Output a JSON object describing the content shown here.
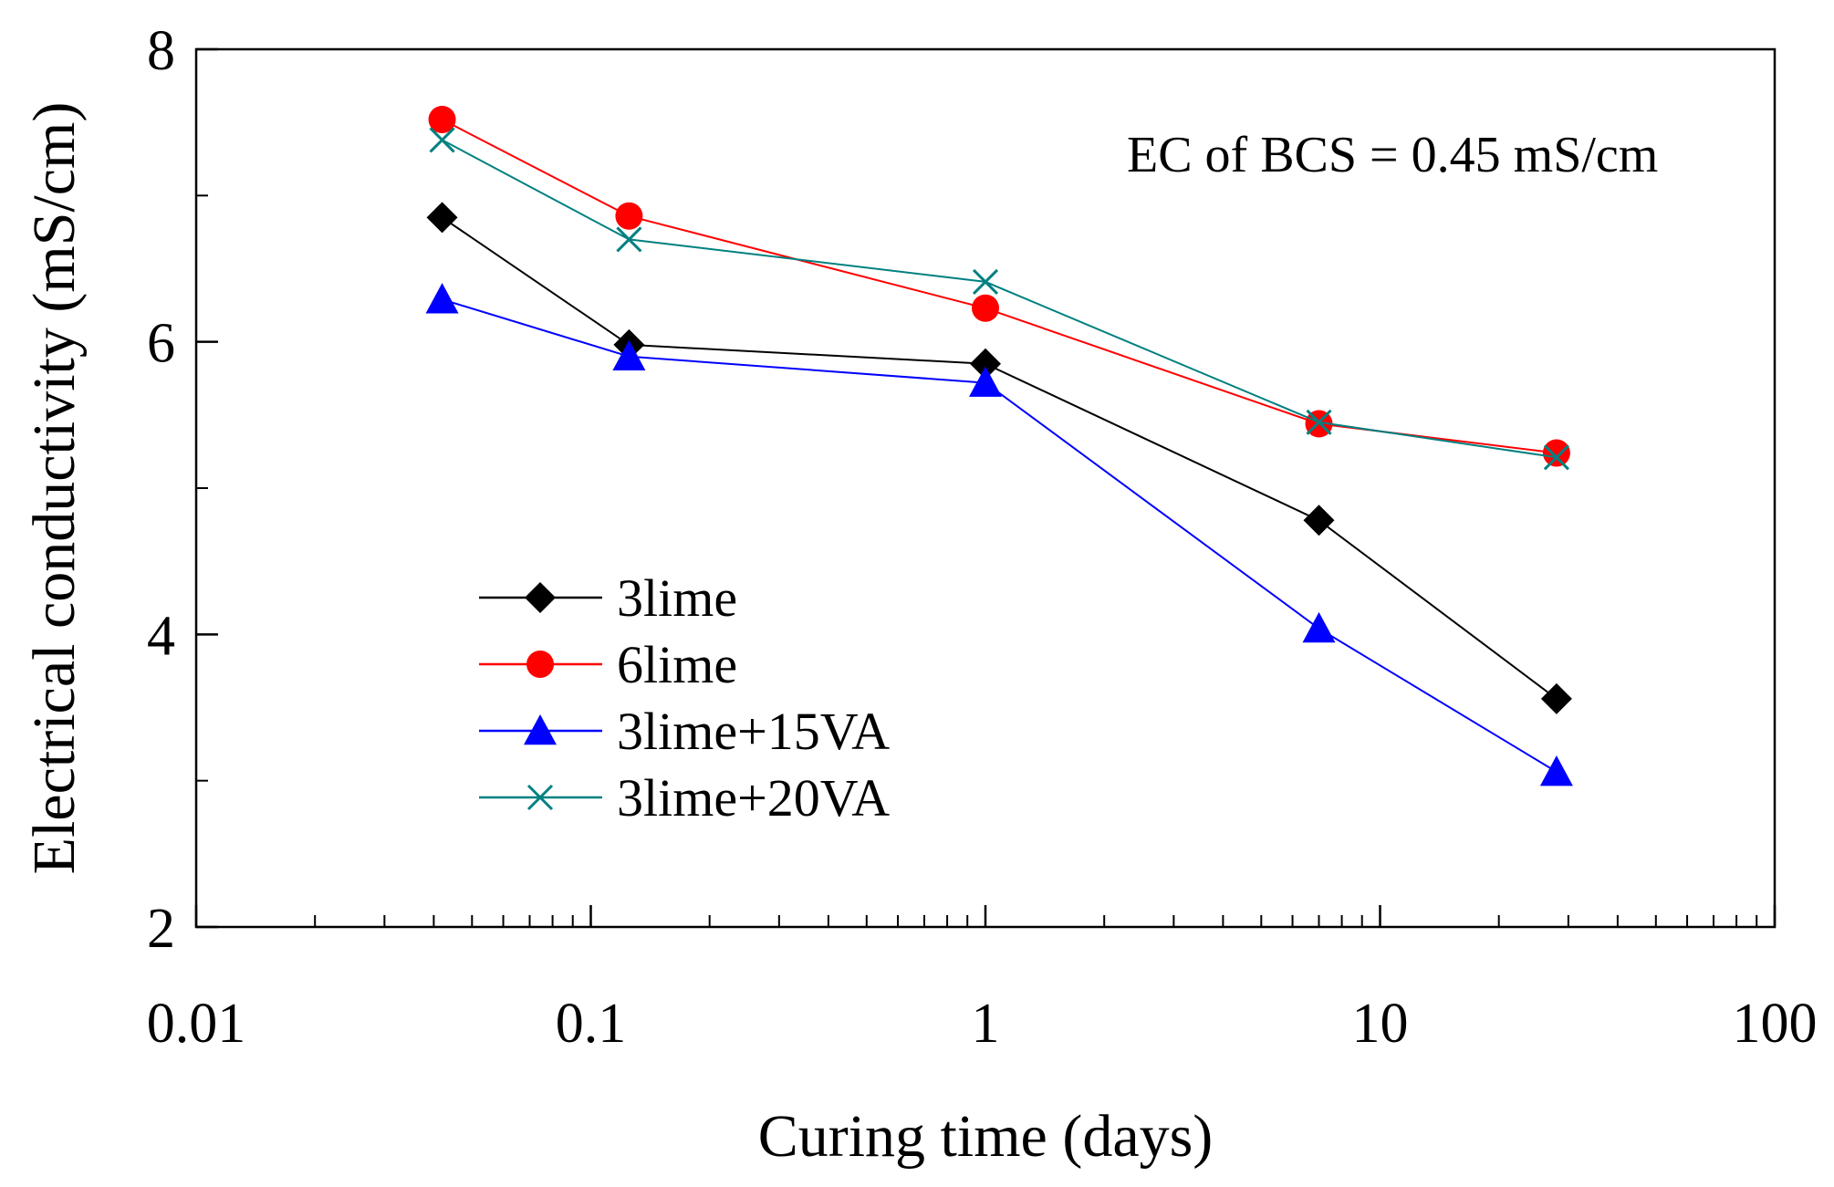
{
  "chart_data": {
    "type": "line",
    "title": "",
    "xlabel": "Curing time (days)",
    "ylabel": "Electrical conductivity (mS/cm)",
    "xscale": "log",
    "xlim": [
      0.01,
      100
    ],
    "ylim": [
      2,
      8
    ],
    "x_ticks": [
      0.01,
      0.1,
      1,
      10,
      100
    ],
    "x_tick_labels": [
      "0.01",
      "0.1",
      "1",
      "10",
      "100"
    ],
    "y_ticks": [
      2,
      4,
      6,
      8
    ],
    "y_tick_labels": [
      "2",
      "4",
      "6",
      "8"
    ],
    "y_minor_ticks": [
      3,
      5,
      7
    ],
    "grid": false,
    "legend_position": "lower-left",
    "annotation": "EC of BCS = 0.45 mS/cm",
    "x": [
      0.042,
      0.125,
      1,
      7,
      28
    ],
    "series": [
      {
        "name": "3lime",
        "values": [
          6.85,
          5.98,
          5.85,
          4.78,
          3.56
        ],
        "color": "#000000",
        "marker": "diamond"
      },
      {
        "name": "6lime",
        "values": [
          7.52,
          6.86,
          6.23,
          5.44,
          5.24
        ],
        "color": "#ff0000",
        "marker": "circle"
      },
      {
        "name": "3lime+15VA",
        "values": [
          6.29,
          5.9,
          5.72,
          4.04,
          3.06
        ],
        "color": "#0000ff",
        "marker": "triangle"
      },
      {
        "name": "3lime+20VA",
        "values": [
          7.38,
          6.7,
          6.41,
          5.45,
          5.21
        ],
        "color": "#008080",
        "marker": "x"
      }
    ]
  }
}
